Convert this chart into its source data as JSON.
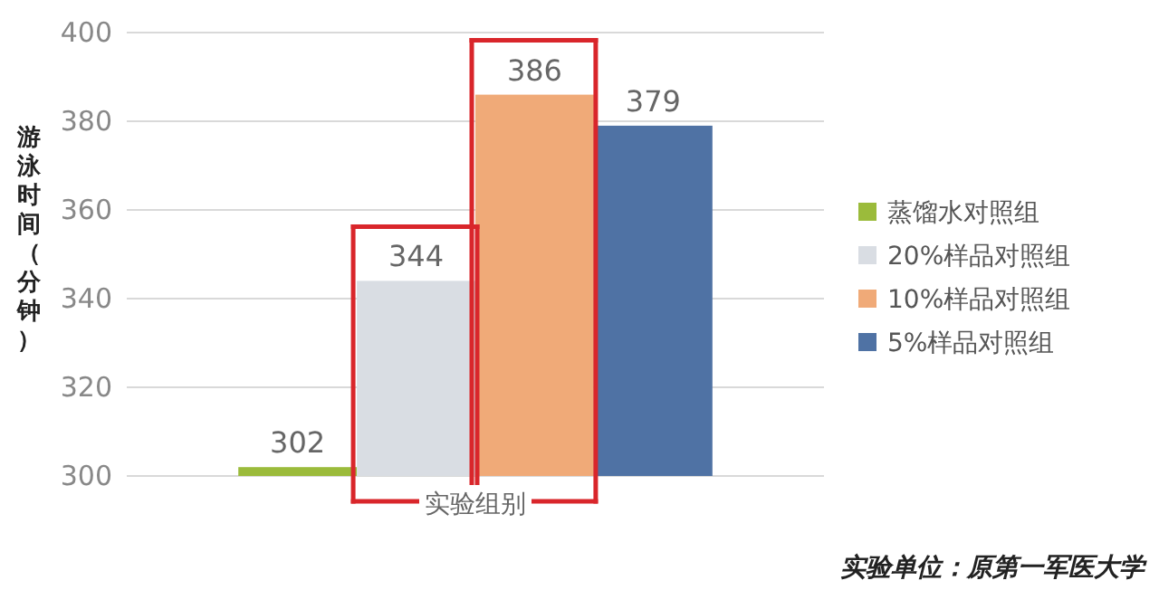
{
  "chart_data": {
    "type": "bar",
    "ylabel": "游泳时间（分钟）",
    "xlabel": "实验组别",
    "categories": [
      null
    ],
    "series": [
      {
        "name": "蒸馏水对照组",
        "color": "#9bbb3b",
        "values": [
          302
        ]
      },
      {
        "name": "20%样品对照组",
        "color": "#d9dde3",
        "values": [
          344
        ]
      },
      {
        "name": "10%样品对照组",
        "color": "#f0aa78",
        "values": [
          386
        ]
      },
      {
        "name": "5%样品对照组",
        "color": "#4f72a4",
        "values": [
          379
        ]
      }
    ],
    "ylim": [
      300,
      400
    ],
    "yticks": [
      300,
      320,
      340,
      360,
      380,
      400
    ],
    "grid": "y",
    "legend": "right",
    "data_labels": true,
    "annotations": [
      "实验单位：原第一军医大学"
    ]
  }
}
